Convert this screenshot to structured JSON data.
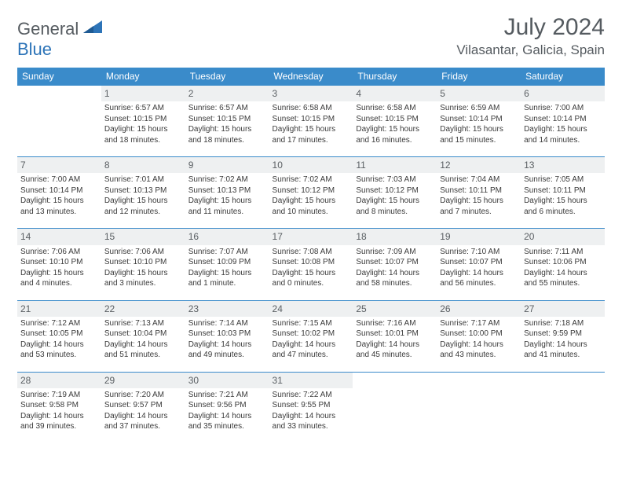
{
  "brand": {
    "part1": "General",
    "part2": "Blue"
  },
  "title": "July 2024",
  "location": "Vilasantar, Galicia, Spain",
  "colors": {
    "header_bg": "#3a8bca",
    "header_text": "#ffffff",
    "daynum_bg": "#eef0f1",
    "rule": "#3a8bca",
    "body_text": "#3a3a3a",
    "title_text": "#555b60"
  },
  "weekdays": [
    "Sunday",
    "Monday",
    "Tuesday",
    "Wednesday",
    "Thursday",
    "Friday",
    "Saturday"
  ],
  "weeks": [
    [
      {
        "n": "",
        "l1": "",
        "l2": "",
        "l3": "",
        "l4": ""
      },
      {
        "n": "1",
        "l1": "Sunrise: 6:57 AM",
        "l2": "Sunset: 10:15 PM",
        "l3": "Daylight: 15 hours",
        "l4": "and 18 minutes."
      },
      {
        "n": "2",
        "l1": "Sunrise: 6:57 AM",
        "l2": "Sunset: 10:15 PM",
        "l3": "Daylight: 15 hours",
        "l4": "and 18 minutes."
      },
      {
        "n": "3",
        "l1": "Sunrise: 6:58 AM",
        "l2": "Sunset: 10:15 PM",
        "l3": "Daylight: 15 hours",
        "l4": "and 17 minutes."
      },
      {
        "n": "4",
        "l1": "Sunrise: 6:58 AM",
        "l2": "Sunset: 10:15 PM",
        "l3": "Daylight: 15 hours",
        "l4": "and 16 minutes."
      },
      {
        "n": "5",
        "l1": "Sunrise: 6:59 AM",
        "l2": "Sunset: 10:14 PM",
        "l3": "Daylight: 15 hours",
        "l4": "and 15 minutes."
      },
      {
        "n": "6",
        "l1": "Sunrise: 7:00 AM",
        "l2": "Sunset: 10:14 PM",
        "l3": "Daylight: 15 hours",
        "l4": "and 14 minutes."
      }
    ],
    [
      {
        "n": "7",
        "l1": "Sunrise: 7:00 AM",
        "l2": "Sunset: 10:14 PM",
        "l3": "Daylight: 15 hours",
        "l4": "and 13 minutes."
      },
      {
        "n": "8",
        "l1": "Sunrise: 7:01 AM",
        "l2": "Sunset: 10:13 PM",
        "l3": "Daylight: 15 hours",
        "l4": "and 12 minutes."
      },
      {
        "n": "9",
        "l1": "Sunrise: 7:02 AM",
        "l2": "Sunset: 10:13 PM",
        "l3": "Daylight: 15 hours",
        "l4": "and 11 minutes."
      },
      {
        "n": "10",
        "l1": "Sunrise: 7:02 AM",
        "l2": "Sunset: 10:12 PM",
        "l3": "Daylight: 15 hours",
        "l4": "and 10 minutes."
      },
      {
        "n": "11",
        "l1": "Sunrise: 7:03 AM",
        "l2": "Sunset: 10:12 PM",
        "l3": "Daylight: 15 hours",
        "l4": "and 8 minutes."
      },
      {
        "n": "12",
        "l1": "Sunrise: 7:04 AM",
        "l2": "Sunset: 10:11 PM",
        "l3": "Daylight: 15 hours",
        "l4": "and 7 minutes."
      },
      {
        "n": "13",
        "l1": "Sunrise: 7:05 AM",
        "l2": "Sunset: 10:11 PM",
        "l3": "Daylight: 15 hours",
        "l4": "and 6 minutes."
      }
    ],
    [
      {
        "n": "14",
        "l1": "Sunrise: 7:06 AM",
        "l2": "Sunset: 10:10 PM",
        "l3": "Daylight: 15 hours",
        "l4": "and 4 minutes."
      },
      {
        "n": "15",
        "l1": "Sunrise: 7:06 AM",
        "l2": "Sunset: 10:10 PM",
        "l3": "Daylight: 15 hours",
        "l4": "and 3 minutes."
      },
      {
        "n": "16",
        "l1": "Sunrise: 7:07 AM",
        "l2": "Sunset: 10:09 PM",
        "l3": "Daylight: 15 hours",
        "l4": "and 1 minute."
      },
      {
        "n": "17",
        "l1": "Sunrise: 7:08 AM",
        "l2": "Sunset: 10:08 PM",
        "l3": "Daylight: 15 hours",
        "l4": "and 0 minutes."
      },
      {
        "n": "18",
        "l1": "Sunrise: 7:09 AM",
        "l2": "Sunset: 10:07 PM",
        "l3": "Daylight: 14 hours",
        "l4": "and 58 minutes."
      },
      {
        "n": "19",
        "l1": "Sunrise: 7:10 AM",
        "l2": "Sunset: 10:07 PM",
        "l3": "Daylight: 14 hours",
        "l4": "and 56 minutes."
      },
      {
        "n": "20",
        "l1": "Sunrise: 7:11 AM",
        "l2": "Sunset: 10:06 PM",
        "l3": "Daylight: 14 hours",
        "l4": "and 55 minutes."
      }
    ],
    [
      {
        "n": "21",
        "l1": "Sunrise: 7:12 AM",
        "l2": "Sunset: 10:05 PM",
        "l3": "Daylight: 14 hours",
        "l4": "and 53 minutes."
      },
      {
        "n": "22",
        "l1": "Sunrise: 7:13 AM",
        "l2": "Sunset: 10:04 PM",
        "l3": "Daylight: 14 hours",
        "l4": "and 51 minutes."
      },
      {
        "n": "23",
        "l1": "Sunrise: 7:14 AM",
        "l2": "Sunset: 10:03 PM",
        "l3": "Daylight: 14 hours",
        "l4": "and 49 minutes."
      },
      {
        "n": "24",
        "l1": "Sunrise: 7:15 AM",
        "l2": "Sunset: 10:02 PM",
        "l3": "Daylight: 14 hours",
        "l4": "and 47 minutes."
      },
      {
        "n": "25",
        "l1": "Sunrise: 7:16 AM",
        "l2": "Sunset: 10:01 PM",
        "l3": "Daylight: 14 hours",
        "l4": "and 45 minutes."
      },
      {
        "n": "26",
        "l1": "Sunrise: 7:17 AM",
        "l2": "Sunset: 10:00 PM",
        "l3": "Daylight: 14 hours",
        "l4": "and 43 minutes."
      },
      {
        "n": "27",
        "l1": "Sunrise: 7:18 AM",
        "l2": "Sunset: 9:59 PM",
        "l3": "Daylight: 14 hours",
        "l4": "and 41 minutes."
      }
    ],
    [
      {
        "n": "28",
        "l1": "Sunrise: 7:19 AM",
        "l2": "Sunset: 9:58 PM",
        "l3": "Daylight: 14 hours",
        "l4": "and 39 minutes."
      },
      {
        "n": "29",
        "l1": "Sunrise: 7:20 AM",
        "l2": "Sunset: 9:57 PM",
        "l3": "Daylight: 14 hours",
        "l4": "and 37 minutes."
      },
      {
        "n": "30",
        "l1": "Sunrise: 7:21 AM",
        "l2": "Sunset: 9:56 PM",
        "l3": "Daylight: 14 hours",
        "l4": "and 35 minutes."
      },
      {
        "n": "31",
        "l1": "Sunrise: 7:22 AM",
        "l2": "Sunset: 9:55 PM",
        "l3": "Daylight: 14 hours",
        "l4": "and 33 minutes."
      },
      {
        "n": "",
        "l1": "",
        "l2": "",
        "l3": "",
        "l4": ""
      },
      {
        "n": "",
        "l1": "",
        "l2": "",
        "l3": "",
        "l4": ""
      },
      {
        "n": "",
        "l1": "",
        "l2": "",
        "l3": "",
        "l4": ""
      }
    ]
  ]
}
